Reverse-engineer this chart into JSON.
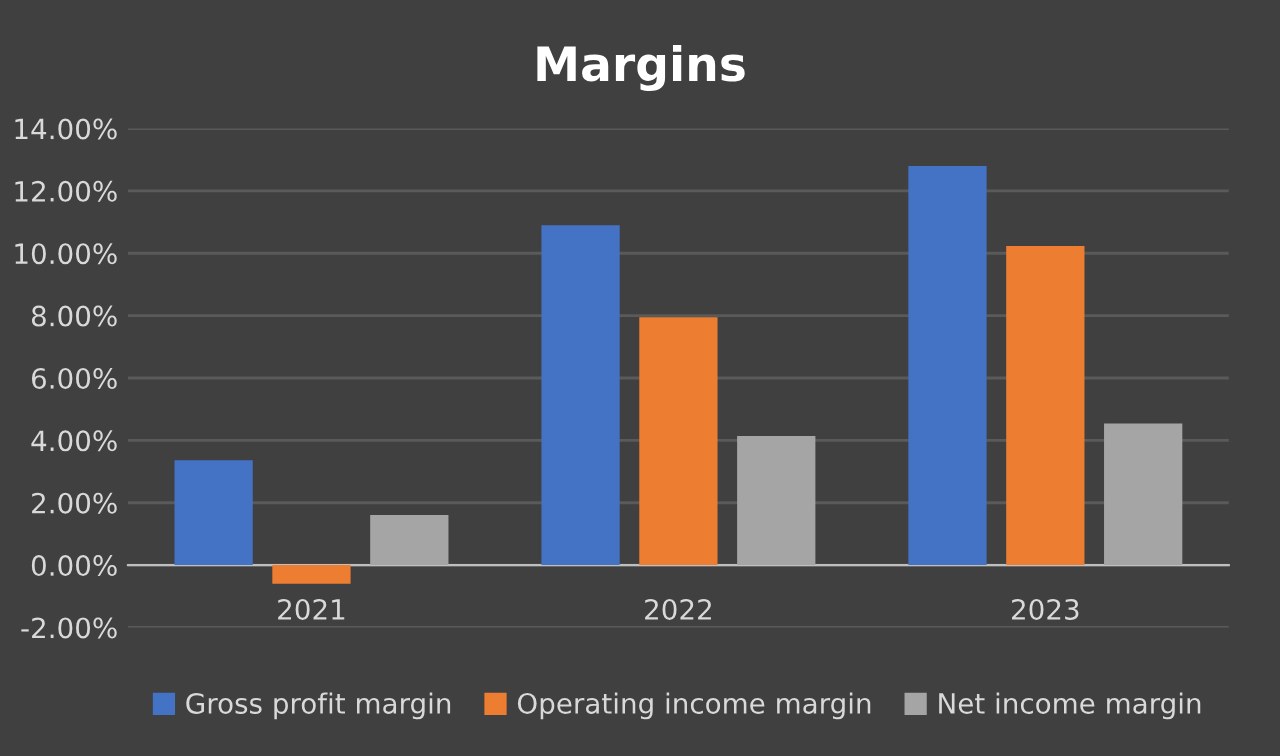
{
  "chart_data": {
    "type": "bar",
    "title": "Margins",
    "categories": [
      "2021",
      "2022",
      "2023"
    ],
    "series": [
      {
        "name": "Gross profit margin",
        "color": "#4472c4",
        "values": [
          3.36,
          10.9,
          12.8
        ]
      },
      {
        "name": "Operating income margin",
        "color": "#ed7d31",
        "values": [
          -0.6,
          7.95,
          10.23
        ]
      },
      {
        "name": "Net income margin",
        "color": "#a5a5a5",
        "values": [
          1.61,
          4.14,
          4.54
        ]
      }
    ],
    "ylim": [
      -2,
      14
    ],
    "yticks": [
      {
        "value": -2,
        "label": "-2.00%"
      },
      {
        "value": 0,
        "label": "0.00%"
      },
      {
        "value": 2,
        "label": "2.00%"
      },
      {
        "value": 4,
        "label": "4.00%"
      },
      {
        "value": 6,
        "label": "6.00%"
      },
      {
        "value": 8,
        "label": "8.00%"
      },
      {
        "value": 10,
        "label": "10.00%"
      },
      {
        "value": 12,
        "label": "12.00%"
      },
      {
        "value": 14,
        "label": "14.00%"
      }
    ],
    "grid": "y",
    "legend": "bottom"
  }
}
